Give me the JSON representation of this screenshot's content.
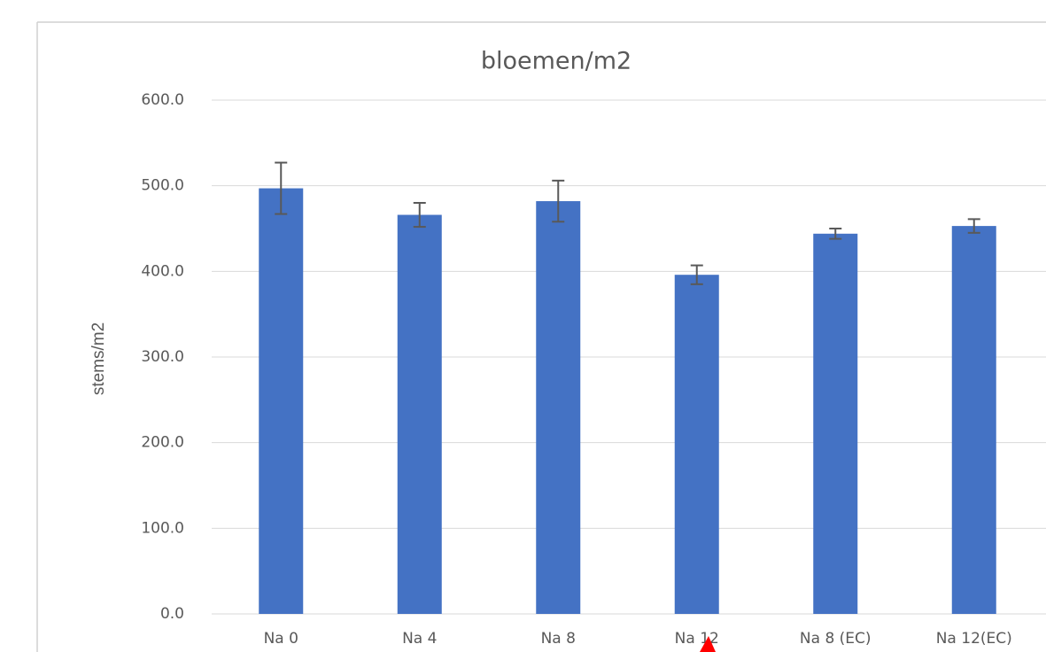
{
  "chart_data": {
    "type": "bar",
    "title": "bloemen/m2",
    "y_label": "stems/m2",
    "categories": [
      "Na 0",
      "Na 4",
      "Na 8",
      "Na 12",
      "Na 8 (EC)",
      "Na 12(EC)"
    ],
    "values": [
      497,
      466,
      482,
      396,
      444,
      453
    ],
    "errors": [
      30,
      14,
      24,
      11,
      6,
      8
    ],
    "color": "#4472c4",
    "error_color": "#595959",
    "ylim": [
      0,
      600
    ],
    "yticks": [
      {
        "value": 0,
        "label": "0.0"
      },
      {
        "value": 100,
        "label": "100.0"
      },
      {
        "value": 200,
        "label": "200.0"
      },
      {
        "value": 300,
        "label": "300.0"
      },
      {
        "value": 400,
        "label": "400.0"
      },
      {
        "value": 500,
        "label": "500.0"
      },
      {
        "value": 600,
        "label": "600.0"
      }
    ],
    "grid": true
  }
}
